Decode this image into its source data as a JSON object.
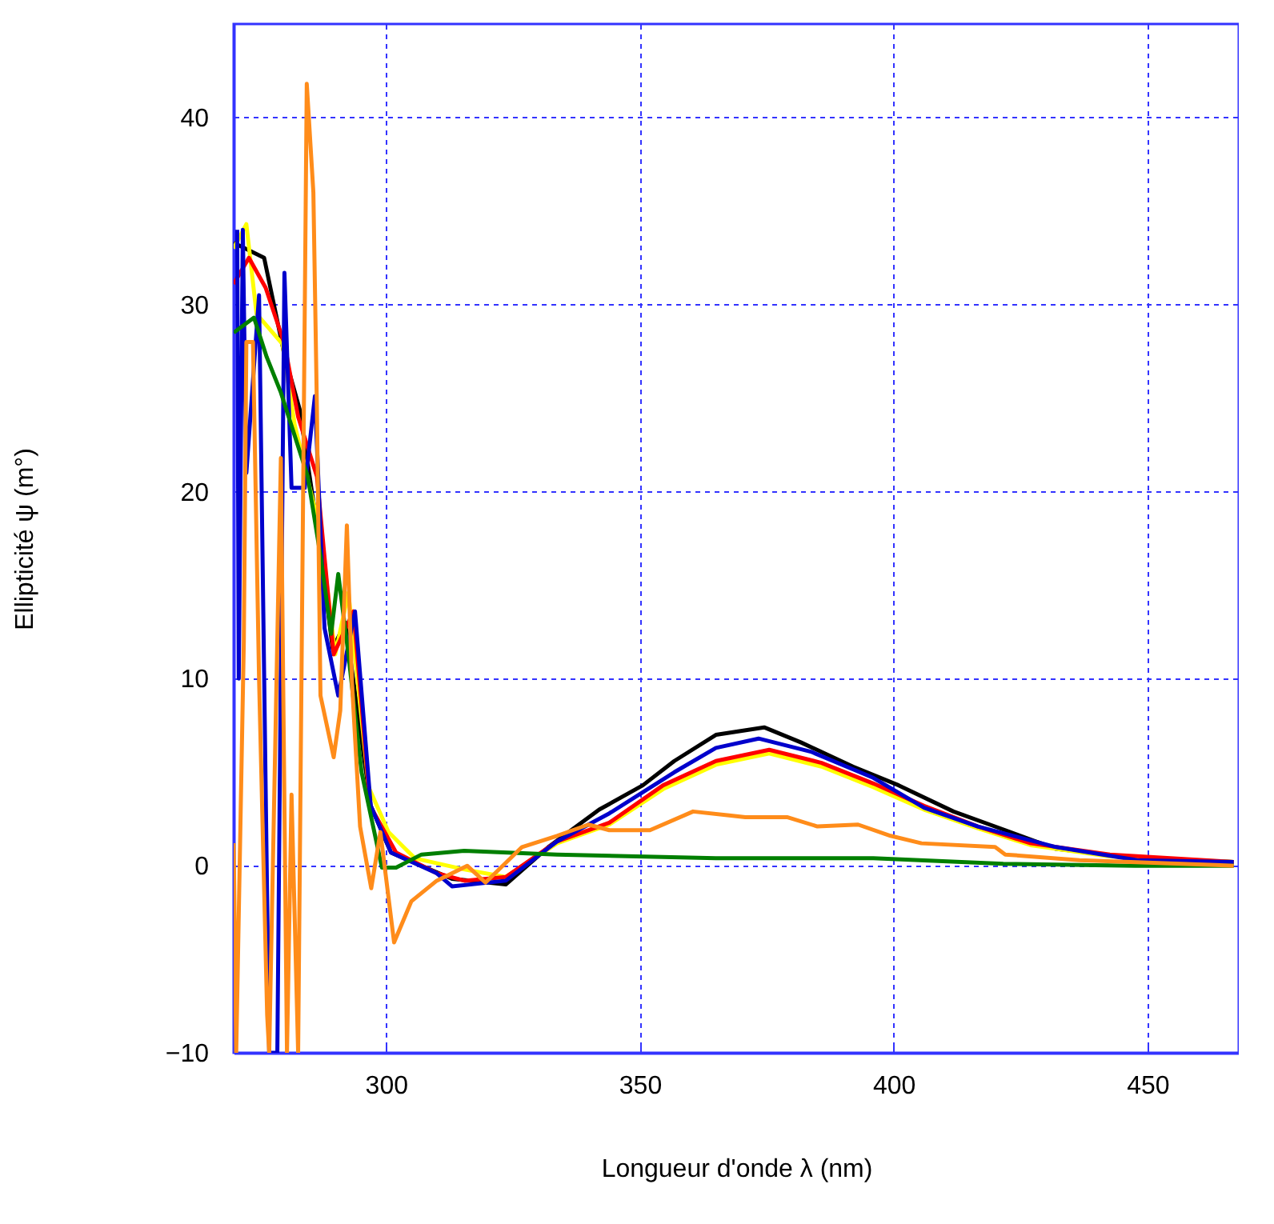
{
  "chart_data": {
    "type": "line",
    "xlabel": "Longueur d'onde λ (nm)",
    "ylabel": "Ellipticité ψ (m°)",
    "xlim": [
      270,
      468
    ],
    "ylim": [
      -10,
      45
    ],
    "xticks": [
      300,
      350,
      400,
      450
    ],
    "yticks": [
      -10,
      0,
      10,
      20,
      30,
      40
    ],
    "grid": true,
    "line_style": "solid",
    "marker": "none",
    "series": [
      {
        "color": "#000000",
        "x": [
          270,
          276,
          280,
          283,
          287,
          289.5,
          292,
          297,
          301,
          313,
          323.6,
          332,
          342,
          350.6,
          356.8,
          365,
          374.5,
          381.7,
          392,
          401,
          411.8,
          422,
          432,
          448,
          467
        ],
        "values": [
          33.3,
          32.5,
          27.3,
          24.4,
          17.1,
          11.6,
          13,
          3.2,
          0.7,
          -0.7,
          -1,
          1,
          3,
          4.3,
          5.6,
          7,
          7.4,
          6.6,
          5.3,
          4.3,
          2.9,
          1.9,
          0.9,
          0.4,
          0.2
        ]
      },
      {
        "color": "#ffff00",
        "x": [
          270,
          272.5,
          274.5,
          279.6,
          282,
          287.2,
          290,
          292.6,
          296.6,
          300.5,
          305.7,
          315.5,
          323.6,
          333.7,
          344,
          354.6,
          365,
          375.5,
          385.8,
          396,
          406,
          416.6,
          427,
          442.6,
          467
        ],
        "values": [
          33,
          34.3,
          29.5,
          27.9,
          23.6,
          17.7,
          11.3,
          14.6,
          4.2,
          1.8,
          0.4,
          -0.2,
          -0.6,
          1.2,
          2.2,
          4.1,
          5.4,
          6,
          5.3,
          4.2,
          3,
          2,
          1.1,
          0.5,
          0.2
        ]
      },
      {
        "color": "#ff0000",
        "x": [
          270,
          273,
          276.3,
          280,
          282.7,
          286.4,
          289.7,
          293.6,
          296.9,
          302,
          310,
          315.5,
          323.6,
          333.7,
          344,
          354.6,
          365,
          375.5,
          385.8,
          396,
          406,
          416.6,
          427,
          442.6,
          467
        ],
        "values": [
          31.1,
          32.5,
          30.9,
          27.9,
          24,
          20.8,
          11.3,
          13.6,
          3.2,
          0.7,
          -0.4,
          -0.8,
          -0.6,
          1.3,
          2.3,
          4.3,
          5.6,
          6.2,
          5.5,
          4.4,
          3.2,
          2.1,
          1.2,
          0.6,
          0.2
        ]
      },
      {
        "color": "#0000cc",
        "x": [
          270.7,
          271,
          271.8,
          272.5,
          275,
          277,
          278.6,
          280,
          281.4,
          284,
          286,
          287.9,
          290.6,
          293.9,
          297,
          301,
          310,
          313,
          323.6,
          333.7,
          344,
          356.8,
          365,
          373.4,
          383.7,
          396,
          406,
          416.6,
          432,
          448,
          467
        ],
        "values": [
          34,
          10,
          34,
          21,
          30.5,
          -10,
          -10,
          31.7,
          20.2,
          20.2,
          25.1,
          12.7,
          9.1,
          13.6,
          3.2,
          0.7,
          -0.4,
          -1.1,
          -0.8,
          1.3,
          2.8,
          5,
          6.3,
          6.8,
          6.1,
          4.7,
          3.1,
          2.1,
          1,
          0.3,
          0.2
        ]
      },
      {
        "color": "#007f00",
        "x": [
          270,
          274,
          276.5,
          279.3,
          284.6,
          287.2,
          289.2,
          290.6,
          292.6,
          295.2,
          299.2,
          302,
          307,
          315.4,
          333.7,
          365,
          396,
          421.6,
          447.5,
          467
        ],
        "values": [
          28.5,
          29.3,
          27.2,
          25.3,
          20.8,
          16.4,
          12.4,
          15.6,
          11.3,
          5,
          -0.1,
          -0.1,
          0.6,
          0.8,
          0.6,
          0.4,
          0.4,
          0.1,
          0,
          0
        ]
      },
      {
        "color": "#ff8c1a",
        "x": [
          270,
          270.5,
          272,
          272.5,
          273.8,
          275,
          276.6,
          277,
          279.3,
          280.5,
          281.4,
          282.7,
          284.4,
          285.7,
          286.4,
          287.1,
          289.7,
          291,
          292.3,
          293.3,
          294.9,
          297.1,
          298.9,
          301.6,
          305,
          310,
          316,
          319.6,
          326.8,
          333.7,
          339.9,
          344,
          352,
          360.5,
          370.8,
          379,
          385,
          393,
          399.4,
          405.5,
          420,
          422,
          436.6,
          467
        ],
        "values": [
          1.2,
          -10,
          12,
          28,
          28,
          10,
          -8,
          -10,
          21.8,
          -10,
          3.8,
          -10,
          41.8,
          36,
          24.4,
          9.1,
          5.8,
          8.3,
          18.2,
          9.8,
          2.1,
          -1.2,
          1.8,
          -4.1,
          -1.9,
          -0.8,
          0,
          -0.9,
          1,
          1.6,
          2.2,
          1.9,
          1.9,
          2.9,
          2.6,
          2.6,
          2.1,
          2.2,
          1.6,
          1.2,
          1,
          0.6,
          0.3,
          0
        ]
      }
    ]
  }
}
